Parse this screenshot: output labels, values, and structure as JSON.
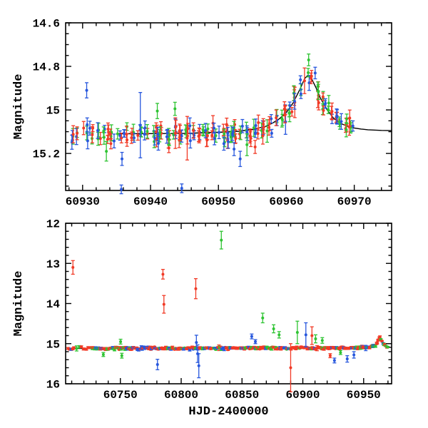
{
  "figure": {
    "background": "#ffffff",
    "axis_color": "#000000",
    "model_color": "#000000",
    "series_colors": {
      "red": "#f13a26",
      "green": "#2fc433",
      "blue": "#2757dd"
    }
  },
  "chart_data": [
    {
      "panel": "top",
      "type": "scatter",
      "title": "",
      "xlabel": "",
      "ylabel": "Magnitude",
      "legend": "none",
      "grid": false,
      "y_axis_inverted_magnitude": true,
      "xlim": [
        60927.5,
        60975.5
      ],
      "ylim_bottom": 15.37,
      "ylim_top": 14.6,
      "xticks": [
        60930,
        60940,
        60950,
        60960,
        60970
      ],
      "xtick_labels": [
        "60930",
        "60940",
        "60950",
        "60960",
        "60970"
      ],
      "x_minor_step": 2,
      "yticks": [
        14.6,
        14.8,
        15.0,
        15.2
      ],
      "ytick_labels": [
        "14.6",
        "14.8",
        "15",
        "15.2"
      ],
      "y_minor_step": 0.05,
      "model_curve": [
        [
          60706,
          15.12
        ],
        [
          60760,
          15.117
        ],
        [
          60820,
          15.113
        ],
        [
          60880,
          15.112
        ],
        [
          60920,
          15.11
        ],
        [
          60935,
          15.11
        ],
        [
          60945,
          15.108
        ],
        [
          60950,
          15.103
        ],
        [
          60953,
          15.098
        ],
        [
          60955,
          15.09
        ],
        [
          60957,
          15.075
        ],
        [
          60958,
          15.06
        ],
        [
          60959,
          15.04
        ],
        [
          60960,
          15.012
        ],
        [
          60961,
          14.968
        ],
        [
          60962,
          14.905
        ],
        [
          60962.7,
          14.856
        ],
        [
          60963.2,
          14.84
        ],
        [
          60963.7,
          14.856
        ],
        [
          60964.4,
          14.9
        ],
        [
          60965,
          14.945
        ],
        [
          60966,
          15.0
        ],
        [
          60967,
          15.04
        ],
        [
          60968,
          15.062
        ],
        [
          60969,
          15.075
        ],
        [
          60970,
          15.083
        ],
        [
          60971,
          15.088
        ],
        [
          60972,
          15.091
        ],
        [
          60974,
          15.094
        ],
        [
          60975.5,
          15.095
        ]
      ],
      "band": {
        "x_start": 60928,
        "x_end": 60970,
        "scatter_mag": 0.021,
        "err_min": 0.016,
        "err_max": 0.04,
        "seed": 20240917,
        "per_night_max": {
          "red": 3,
          "green": 2,
          "blue": 2
        }
      },
      "outliers": [
        [
          60930.6,
          14.91,
          0.035,
          "blue"
        ],
        [
          60933.5,
          15.19,
          0.045,
          "green"
        ],
        [
          60935.8,
          15.225,
          0.03,
          "blue"
        ],
        [
          60935.7,
          15.365,
          0.02,
          "blue"
        ],
        [
          60938.5,
          15.07,
          0.15,
          "blue"
        ],
        [
          60941.0,
          15.005,
          0.035,
          "green"
        ],
        [
          60943.6,
          14.995,
          0.03,
          "green"
        ],
        [
          60944.6,
          15.36,
          0.02,
          "blue"
        ],
        [
          60945.4,
          15.13,
          0.1,
          "red"
        ],
        [
          60950.8,
          15.155,
          0.03,
          "blue"
        ],
        [
          60952.3,
          15.18,
          0.03,
          "blue"
        ],
        [
          60953.2,
          15.225,
          0.035,
          "blue"
        ],
        [
          60954.2,
          15.16,
          0.05,
          "green"
        ],
        [
          60955.4,
          15.17,
          0.03,
          "red"
        ]
      ]
    },
    {
      "panel": "bottom",
      "type": "scatter",
      "title": "",
      "xlabel": "HJD-2400000",
      "ylabel": "Magnitude",
      "legend": "none",
      "grid": false,
      "y_axis_inverted_magnitude": true,
      "xlim": [
        60705,
        60973
      ],
      "ylim_bottom": 16,
      "ylim_top": 12,
      "xticks": [
        60750,
        60800,
        60850,
        60900,
        60950
      ],
      "xtick_labels": [
        "60750",
        "60800",
        "60850",
        "60900",
        "60950"
      ],
      "x_minor_step": 10,
      "yticks": [
        12,
        13,
        14,
        15,
        16
      ],
      "ytick_labels": [
        "12",
        "13",
        "14",
        "15",
        "16"
      ],
      "y_minor_step": 0.2,
      "model_curve": [
        [
          60706,
          15.12
        ],
        [
          60760,
          15.117
        ],
        [
          60820,
          15.113
        ],
        [
          60880,
          15.112
        ],
        [
          60920,
          15.11
        ],
        [
          60935,
          15.11
        ],
        [
          60945,
          15.108
        ],
        [
          60950,
          15.103
        ],
        [
          60953,
          15.098
        ],
        [
          60955,
          15.09
        ],
        [
          60957,
          15.075
        ],
        [
          60958,
          15.06
        ],
        [
          60959,
          15.04
        ],
        [
          60960,
          15.012
        ],
        [
          60961,
          14.968
        ],
        [
          60962,
          14.905
        ],
        [
          60962.7,
          14.856
        ],
        [
          60963.2,
          14.84
        ],
        [
          60963.7,
          14.856
        ],
        [
          60964.4,
          14.9
        ],
        [
          60965,
          14.945
        ],
        [
          60966,
          15.0
        ],
        [
          60967,
          15.04
        ],
        [
          60968,
          15.062
        ],
        [
          60969,
          15.075
        ],
        [
          60970,
          15.083
        ],
        [
          60971,
          15.088
        ],
        [
          60972,
          15.091
        ],
        [
          60974,
          15.094
        ],
        [
          60975.5,
          15.095
        ]
      ],
      "band": {
        "segments": [
          {
            "x_start": 60707,
            "x_end": 60727,
            "step": 1.7
          },
          {
            "x_start": 60727,
            "x_end": 60970,
            "step": 0.72
          }
        ],
        "scatter_mag": 0.016,
        "err_min": 0.012,
        "err_max": 0.032,
        "seed": 991,
        "color_weights": {
          "red": 0.64,
          "green": 0.18,
          "blue": 0.18
        }
      },
      "outliers": [
        [
          60711,
          13.1,
          0.17,
          "red"
        ],
        [
          60736,
          15.27,
          0.05,
          "green"
        ],
        [
          60750.2,
          14.95,
          0.06,
          "green"
        ],
        [
          60751.2,
          15.3,
          0.06,
          "green"
        ],
        [
          60780.5,
          15.52,
          0.13,
          "blue"
        ],
        [
          60785,
          13.27,
          0.12,
          "red"
        ],
        [
          60785.8,
          14.02,
          0.22,
          "red"
        ],
        [
          60812,
          13.63,
          0.25,
          "red"
        ],
        [
          60812.5,
          14.97,
          0.18,
          "blue"
        ],
        [
          60813.5,
          15.25,
          0.22,
          "blue"
        ],
        [
          60814.5,
          15.55,
          0.3,
          "blue"
        ],
        [
          60833,
          12.42,
          0.22,
          "green"
        ],
        [
          60858,
          14.82,
          0.06,
          "blue"
        ],
        [
          60861,
          14.95,
          0.05,
          "blue"
        ],
        [
          60867,
          14.36,
          0.12,
          "green"
        ],
        [
          60876,
          14.63,
          0.1,
          "green"
        ],
        [
          60880.5,
          14.78,
          0.08,
          "green"
        ],
        [
          60890,
          15.6,
          0.6,
          "red"
        ],
        [
          60895.5,
          14.72,
          0.28,
          "green"
        ],
        [
          60902.5,
          14.78,
          0.3,
          "blue"
        ],
        [
          60907.5,
          14.8,
          0.22,
          "red"
        ],
        [
          60910.5,
          14.88,
          0.1,
          "green"
        ],
        [
          60916,
          14.92,
          0.07,
          "green"
        ],
        [
          60922.5,
          15.3,
          0.05,
          "red"
        ],
        [
          60926,
          15.42,
          0.06,
          "blue"
        ],
        [
          60931,
          15.22,
          0.05,
          "green"
        ],
        [
          60936.5,
          15.38,
          0.08,
          "blue"
        ],
        [
          60942,
          15.28,
          0.08,
          "blue"
        ]
      ]
    }
  ]
}
